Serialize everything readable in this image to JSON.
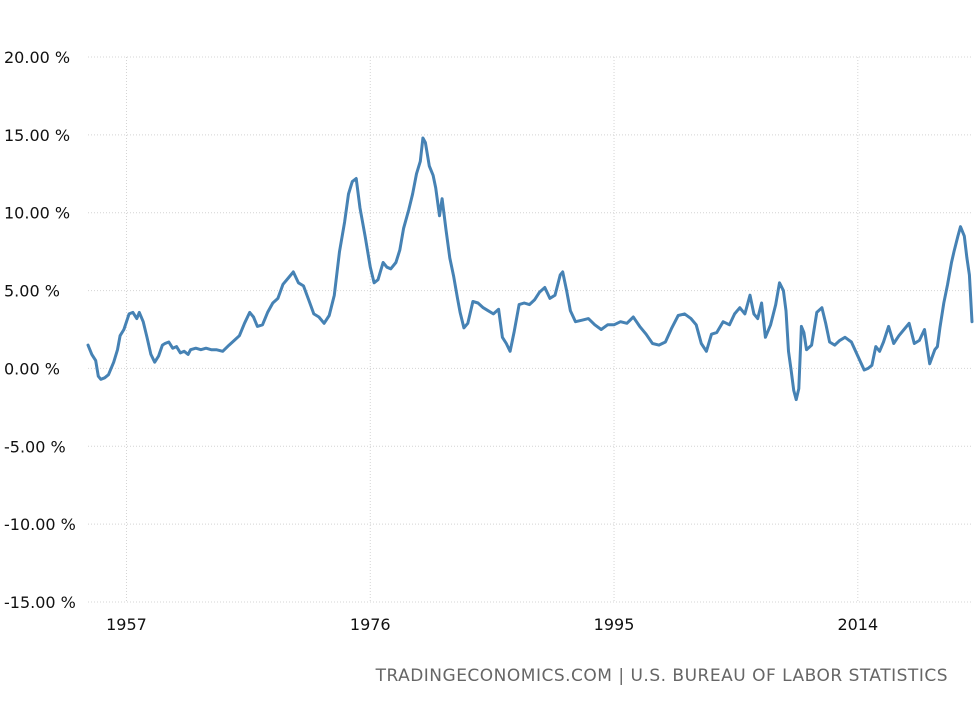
{
  "chart_data": {
    "type": "line",
    "title": "",
    "xlabel": "",
    "ylabel": "",
    "xlim": [
      1954.0,
      2022.9
    ],
    "ylim": [
      -15,
      20
    ],
    "y_ticks": [
      20,
      15,
      10,
      5,
      0,
      -5,
      -10,
      -15
    ],
    "y_tick_labels": [
      "20.00 %",
      "15.00 %",
      "10.00 %",
      "5.00 %",
      "0.00 %",
      "-5.00 %",
      "-10.00 %",
      "-15.00 %"
    ],
    "x_ticks": [
      1957,
      1976,
      1995,
      2014
    ],
    "x_tick_labels": [
      "1957",
      "1976",
      "1995",
      "2014"
    ],
    "grid": true,
    "series": [
      {
        "color": "#4682b4",
        "x": [
          1954.0,
          1954.3,
          1954.6,
          1954.8,
          1955.0,
          1955.3,
          1955.6,
          1956.0,
          1956.3,
          1956.5,
          1956.8,
          1957.0,
          1957.2,
          1957.5,
          1957.8,
          1958.0,
          1958.3,
          1958.6,
          1958.9,
          1959.2,
          1959.5,
          1959.8,
          1960.0,
          1960.3,
          1960.6,
          1960.9,
          1961.2,
          1961.5,
          1961.8,
          1962.0,
          1962.4,
          1962.8,
          1963.2,
          1963.6,
          1964.0,
          1964.5,
          1965.0,
          1965.4,
          1965.8,
          1966.2,
          1966.6,
          1966.9,
          1967.2,
          1967.6,
          1968.0,
          1968.4,
          1968.8,
          1969.2,
          1969.6,
          1970.0,
          1970.4,
          1970.8,
          1971.2,
          1971.6,
          1972.0,
          1972.4,
          1972.8,
          1973.2,
          1973.6,
          1974.0,
          1974.3,
          1974.6,
          1974.9,
          1975.2,
          1975.6,
          1976.0,
          1976.3,
          1976.6,
          1977.0,
          1977.3,
          1977.6,
          1978.0,
          1978.3,
          1978.6,
          1979.0,
          1979.3,
          1979.6,
          1979.9,
          1980.1,
          1980.3,
          1980.6,
          1980.9,
          1981.1,
          1981.4,
          1981.6,
          1981.9,
          1982.2,
          1982.5,
          1982.8,
          1983.0,
          1983.3,
          1983.6,
          1984.0,
          1984.4,
          1984.8,
          1985.2,
          1985.6,
          1986.0,
          1986.3,
          1986.6,
          1986.9,
          1987.2,
          1987.6,
          1988.0,
          1988.4,
          1988.8,
          1989.2,
          1989.6,
          1990.0,
          1990.4,
          1990.8,
          1991.0,
          1991.3,
          1991.6,
          1992.0,
          1992.5,
          1993.0,
          1993.5,
          1994.0,
          1994.5,
          1995.0,
          1995.5,
          1996.0,
          1996.5,
          1997.0,
          1997.5,
          1998.0,
          1998.5,
          1999.0,
          1999.5,
          2000.0,
          2000.5,
          2001.0,
          2001.4,
          2001.8,
          2002.2,
          2002.6,
          2003.0,
          2003.5,
          2004.0,
          2004.4,
          2004.8,
          2005.2,
          2005.6,
          2005.9,
          2006.2,
          2006.5,
          2006.8,
          2007.2,
          2007.6,
          2007.9,
          2008.2,
          2008.4,
          2008.6,
          2008.8,
          2009.0,
          2009.2,
          2009.4,
          2009.6,
          2009.8,
          2010.0,
          2010.4,
          2010.8,
          2011.2,
          2011.5,
          2011.8,
          2012.2,
          2012.6,
          2013.0,
          2013.5,
          2014.0,
          2014.5,
          2014.8,
          2015.1,
          2015.4,
          2015.7,
          2016.0,
          2016.4,
          2016.8,
          2017.2,
          2017.6,
          2018.0,
          2018.4,
          2018.8,
          2019.2,
          2019.6,
          2020.0,
          2020.2,
          2020.4,
          2020.7,
          2021.0,
          2021.3,
          2021.5,
          2021.8,
          2022.0,
          2022.3,
          2022.5,
          2022.7,
          2022.9
        ],
        "y": [
          1.5,
          0.9,
          0.5,
          -0.5,
          -0.7,
          -0.6,
          -0.4,
          0.4,
          1.2,
          2.1,
          2.5,
          3.0,
          3.5,
          3.6,
          3.2,
          3.6,
          3.0,
          2.0,
          0.9,
          0.4,
          0.8,
          1.5,
          1.6,
          1.7,
          1.3,
          1.4,
          1.0,
          1.1,
          0.9,
          1.2,
          1.3,
          1.2,
          1.3,
          1.2,
          1.2,
          1.1,
          1.5,
          1.8,
          2.1,
          2.9,
          3.6,
          3.3,
          2.7,
          2.8,
          3.6,
          4.2,
          4.5,
          5.4,
          5.8,
          6.2,
          5.5,
          5.3,
          4.4,
          3.5,
          3.3,
          2.9,
          3.4,
          4.7,
          7.5,
          9.4,
          11.2,
          12.0,
          12.2,
          10.3,
          8.5,
          6.5,
          5.5,
          5.7,
          6.8,
          6.5,
          6.4,
          6.8,
          7.6,
          9.0,
          10.2,
          11.2,
          12.5,
          13.3,
          14.8,
          14.5,
          13.0,
          12.4,
          11.6,
          9.8,
          10.9,
          8.9,
          7.1,
          5.9,
          4.5,
          3.6,
          2.6,
          2.9,
          4.3,
          4.2,
          3.9,
          3.7,
          3.5,
          3.8,
          2.0,
          1.6,
          1.1,
          2.3,
          4.1,
          4.2,
          4.1,
          4.4,
          4.9,
          5.2,
          4.5,
          4.7,
          6.0,
          6.2,
          5.0,
          3.7,
          3.0,
          3.1,
          3.2,
          2.8,
          2.5,
          2.8,
          2.8,
          3.0,
          2.9,
          3.3,
          2.7,
          2.2,
          1.6,
          1.5,
          1.7,
          2.6,
          3.4,
          3.5,
          3.2,
          2.8,
          1.6,
          1.1,
          2.2,
          2.3,
          3.0,
          2.8,
          3.5,
          3.9,
          3.5,
          4.7,
          3.5,
          3.2,
          4.2,
          2.0,
          2.8,
          4.1,
          5.5,
          5.0,
          3.7,
          1.1,
          -0.1,
          -1.4,
          -2.0,
          -1.3,
          2.7,
          2.3,
          1.2,
          1.5,
          3.6,
          3.9,
          2.9,
          1.7,
          1.5,
          1.8,
          2.0,
          1.7,
          0.8,
          -0.1,
          0.0,
          0.2,
          1.4,
          1.1,
          1.7,
          2.7,
          1.6,
          2.1,
          2.5,
          2.9,
          1.6,
          1.8,
          2.5,
          0.3,
          1.2,
          1.4,
          2.6,
          4.2,
          5.4,
          6.8,
          7.5,
          8.5,
          9.1,
          8.5,
          7.1,
          6.0,
          3.0
        ]
      }
    ]
  },
  "source": "TRADINGECONOMICS.COM  |  U.S. BUREAU OF LABOR STATISTICS"
}
